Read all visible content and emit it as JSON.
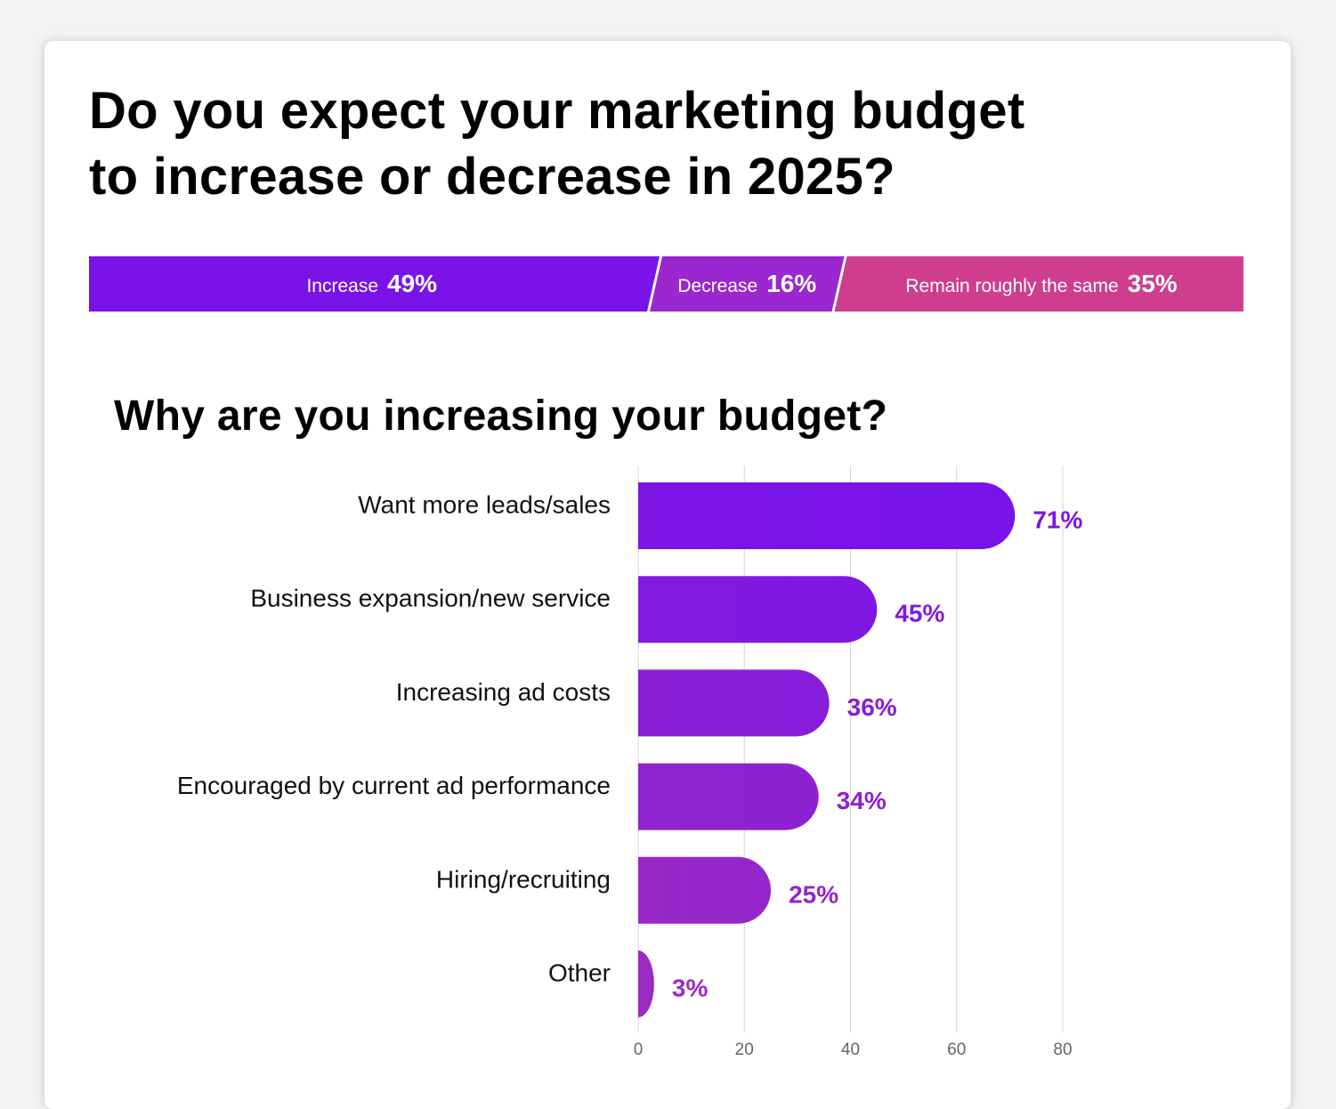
{
  "title": "Do you expect your marketing budget\nto increase or decrease in 2025?",
  "summary_bar": {
    "segments": [
      {
        "label": "Increase",
        "value_text": "49%",
        "value": 49,
        "color": "#7a13e8"
      },
      {
        "label": "Decrease",
        "value_text": "16%",
        "value": 16,
        "color": "#9a27cf"
      },
      {
        "label": "Remain roughly the same",
        "value_text": "35%",
        "value": 35,
        "color": "#cf3d8f"
      }
    ]
  },
  "chart_data": {
    "type": "bar",
    "orientation": "horizontal",
    "title": "Why are you increasing your budget?",
    "categories": [
      "Want more leads/sales",
      "Business expansion/new service",
      "Increasing ad costs",
      "Encouraged by current ad performance",
      "Hiring/recruiting",
      "Other"
    ],
    "values": [
      71,
      45,
      36,
      34,
      25,
      3
    ],
    "data_labels": [
      "71%",
      "45%",
      "36%",
      "34%",
      "25%",
      "3%"
    ],
    "xlim": [
      0,
      80
    ],
    "xticks": [
      0,
      20,
      40,
      60,
      80
    ],
    "grid": true,
    "colors": {
      "bar_start": "#7813ea",
      "bar_end": "#9b2bc4",
      "label_start": "#7c14e6",
      "label_end": "#9a27c8"
    }
  }
}
